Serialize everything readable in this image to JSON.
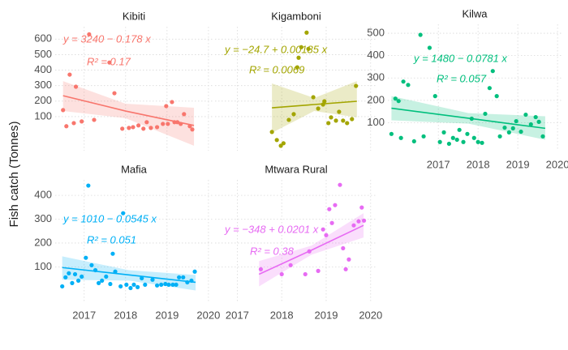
{
  "ylabel": "Fish catch (Tonnes)",
  "chart_data": [
    {
      "type": "scatter",
      "title": "Kibiti",
      "color": "#F8766D",
      "grid": true,
      "show_xtick_labels": false,
      "show_ytick_labels": true,
      "xlim": [
        2016.3,
        2020.1
      ],
      "ylim": [
        -120,
        680
      ],
      "xticks": [
        2017,
        2018,
        2019,
        2020
      ],
      "yticks": [
        100,
        200,
        300,
        400,
        500,
        600
      ],
      "x": [
        2016.49,
        2016.57,
        2016.65,
        2016.75,
        2016.8,
        2016.94,
        2017.12,
        2017.24,
        2017.61,
        2017.73,
        2017.92,
        2018.08,
        2018.18,
        2018.31,
        2018.43,
        2018.51,
        2018.61,
        2018.76,
        2018.9,
        2018.98,
        2019.02,
        2019.12,
        2019.18,
        2019.25,
        2019.33,
        2019.41,
        2019.55,
        2019.61
      ],
      "values": [
        142,
        38,
        371,
        58,
        293,
        69,
        631,
        79,
        449,
        251,
        22,
        27,
        32,
        43,
        22,
        64,
        27,
        32,
        53,
        168,
        53,
        194,
        64,
        64,
        53,
        116,
        38,
        17
      ],
      "fit": {
        "x": [
          2016.49,
          2018.0,
          2019.65
        ],
        "values": [
          235,
          136,
          43
        ],
        "lower": [
          136,
          90,
          -88
        ],
        "upper": [
          329,
          183,
          157
        ]
      },
      "equation": "y = 3240 − 0.178 x",
      "r2": "R² = 0.17"
    },
    {
      "type": "scatter",
      "title": "Kigamboni",
      "color": "#A3A500",
      "grid": true,
      "show_xtick_labels": false,
      "show_ytick_labels": false,
      "xlim": [
        2016.5,
        2020.15
      ],
      "ylim": [
        -120,
        680
      ],
      "xticks": [
        2017,
        2018,
        2019,
        2020
      ],
      "yticks": [
        100,
        200,
        300,
        400,
        500,
        600
      ],
      "x": [
        2017.78,
        2017.89,
        2017.98,
        2018.04,
        2018.16,
        2018.27,
        2018.35,
        2018.38,
        2018.44,
        2018.56,
        2018.6,
        2018.71,
        2018.82,
        2018.93,
        2018.96,
        2019.05,
        2019.11,
        2019.22,
        2019.29,
        2019.38,
        2019.47,
        2019.58,
        2019.67
      ],
      "values": [
        1,
        -51,
        -88,
        -72,
        79,
        116,
        418,
        480,
        548,
        642,
        537,
        225,
        152,
        178,
        199,
        58,
        95,
        74,
        131,
        74,
        58,
        84,
        298
      ],
      "fit": {
        "x": [
          2017.78,
          2018.73,
          2019.69
        ],
        "values": [
          157,
          178,
          199
        ],
        "lower": [
          -4,
          136,
          95
        ],
        "upper": [
          314,
          220,
          329
        ]
      },
      "equation": "y = −24.7 + 0.00185 x",
      "r2": "R² = 0.0069"
    },
    {
      "type": "scatter",
      "title": "Kilwa",
      "color": "#00BF7D",
      "grid": true,
      "show_xtick_labels": true,
      "show_ytick_labels": true,
      "xlim": [
        2015.73,
        2020.1
      ],
      "ylim": [
        -25,
        540
      ],
      "xticks": [
        2017,
        2018,
        2019,
        2020
      ],
      "yticks": [
        100,
        200,
        300,
        400,
        500
      ],
      "x": [
        2015.82,
        2015.92,
        2016.0,
        2016.06,
        2016.12,
        2016.24,
        2016.39,
        2016.55,
        2016.63,
        2016.78,
        2016.92,
        2017.04,
        2017.14,
        2017.27,
        2017.37,
        2017.47,
        2017.53,
        2017.63,
        2017.73,
        2017.84,
        2017.9,
        2018.0,
        2018.1,
        2018.18,
        2018.29,
        2018.37,
        2018.47,
        2018.55,
        2018.67,
        2018.78,
        2018.88,
        2018.96,
        2019.08,
        2019.2,
        2019.33,
        2019.45,
        2019.53,
        2019.63
      ],
      "values": [
        50,
        208,
        197,
        32,
        284,
        269,
        17,
        493,
        39,
        435,
        219,
        14,
        57,
        6,
        32,
        24,
        68,
        14,
        50,
        118,
        32,
        14,
        10,
        140,
        255,
        331,
        219,
        39,
        78,
        57,
        75,
        107,
        60,
        136,
        93,
        125,
        104,
        39
      ],
      "fit": {
        "x": [
          2015.82,
          2017.76,
          2019.69
        ],
        "values": [
          165,
          120,
          75
        ],
        "lower": [
          111,
          96,
          24
        ],
        "upper": [
          219,
          143,
          129
        ]
      },
      "equation": "y = 1480 − 0.0781 x",
      "r2": "R² = 0.057"
    },
    {
      "type": "scatter",
      "title": "Mafia",
      "color": "#00B0F6",
      "grid": true,
      "show_xtick_labels": true,
      "show_ytick_labels": true,
      "xlim": [
        2016.3,
        2020.1
      ],
      "ylim": [
        -45,
        465
      ],
      "xticks": [
        2017,
        2018,
        2019,
        2020
      ],
      "yticks": [
        100,
        200,
        300,
        400
      ],
      "x": [
        2016.47,
        2016.55,
        2016.63,
        2016.71,
        2016.78,
        2016.86,
        2016.94,
        2017.04,
        2017.1,
        2017.18,
        2017.27,
        2017.35,
        2017.43,
        2017.53,
        2017.63,
        2017.69,
        2017.75,
        2017.88,
        2017.94,
        2018.02,
        2018.12,
        2018.2,
        2018.29,
        2018.39,
        2018.47,
        2018.65,
        2018.76,
        2018.86,
        2018.96,
        2019.04,
        2019.14,
        2019.22,
        2019.29,
        2019.39,
        2019.49,
        2019.59,
        2019.67
      ],
      "values": [
        18,
        56,
        73,
        32,
        69,
        42,
        59,
        138,
        441,
        107,
        86,
        32,
        42,
        59,
        28,
        155,
        80,
        18,
        325,
        25,
        11,
        25,
        15,
        52,
        25,
        46,
        22,
        25,
        28,
        25,
        25,
        25,
        56,
        56,
        35,
        42,
        80
      ],
      "fit": {
        "x": [
          2016.47,
          2018.08,
          2019.69
        ],
        "values": [
          97,
          66,
          35
        ],
        "lower": [
          46,
          42,
          1
        ],
        "upper": [
          144,
          86,
          66
        ]
      },
      "equation": "y = 1010 − 0.0545 x",
      "r2": "R² = 0.051"
    },
    {
      "type": "scatter",
      "title": "Mtwara Rural",
      "color": "#E76BF3",
      "grid": true,
      "show_xtick_labels": true,
      "show_ytick_labels": false,
      "xlim": [
        2016.5,
        2020.15
      ],
      "ylim": [
        -45,
        465
      ],
      "xticks": [
        2017,
        2018,
        2019,
        2020
      ],
      "yticks": [
        100,
        200,
        300,
        400
      ],
      "x": [
        2017.53,
        2018.0,
        2018.2,
        2018.53,
        2018.62,
        2018.82,
        2018.93,
        2019.0,
        2019.07,
        2019.13,
        2019.2,
        2019.31,
        2019.38,
        2019.44,
        2019.51,
        2019.62,
        2019.73,
        2019.8,
        2019.85
      ],
      "values": [
        90,
        69,
        107,
        69,
        165,
        83,
        257,
        233,
        342,
        284,
        359,
        444,
        178,
        90,
        131,
        274,
        291,
        349,
        294
      ],
      "fit": {
        "x": [
          2017.49,
          2018.67,
          2019.84
        ],
        "values": [
          69,
          170,
          274
        ],
        "lower": [
          18,
          151,
          223
        ],
        "upper": [
          124,
          189,
          325
        ]
      },
      "equation": "y = −348 + 0.0201 x",
      "r2": "R² = 0.38"
    }
  ]
}
